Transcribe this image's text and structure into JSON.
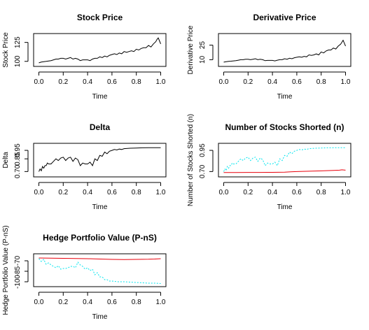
{
  "figure": {
    "background": "#ffffff"
  },
  "chart_data": [
    {
      "id": "stock",
      "type": "line",
      "title": "Stock Price",
      "xlabel": "Time",
      "ylabel": "Stock Price",
      "xlim": [
        0,
        1
      ],
      "ylim": [
        97,
        133
      ],
      "xticks": [
        0.0,
        0.2,
        0.4,
        0.6,
        0.8,
        1.0
      ],
      "xtick_labels": [
        "0.0",
        "0.2",
        "0.4",
        "0.6",
        "0.8",
        "1.0"
      ],
      "yticks": [
        100,
        125
      ],
      "ytick_labels": [
        "100",
        "125"
      ],
      "grid": false,
      "series": [
        {
          "color": "#000000",
          "dashed": false,
          "x": [
            0,
            0.02,
            0.04,
            0.06,
            0.08,
            0.1,
            0.12,
            0.14,
            0.16,
            0.18,
            0.2,
            0.22,
            0.24,
            0.26,
            0.28,
            0.3,
            0.32,
            0.34,
            0.36,
            0.38,
            0.4,
            0.42,
            0.44,
            0.46,
            0.48,
            0.5,
            0.52,
            0.54,
            0.56,
            0.58,
            0.6,
            0.62,
            0.64,
            0.66,
            0.68,
            0.7,
            0.72,
            0.74,
            0.76,
            0.78,
            0.8,
            0.82,
            0.84,
            0.86,
            0.88,
            0.9,
            0.92,
            0.94,
            0.96,
            0.97,
            0.98,
            0.99,
            1.0
          ],
          "y": [
            98,
            99,
            99.5,
            100,
            100.5,
            101,
            102,
            103,
            103,
            104,
            104,
            103,
            104,
            105,
            103,
            104,
            103,
            101,
            102,
            102,
            102,
            101,
            103,
            104,
            104,
            106,
            105,
            107,
            106,
            108,
            109,
            110,
            109,
            111,
            110,
            113,
            112,
            113,
            114,
            113,
            116,
            115,
            117,
            118,
            118,
            121,
            119,
            123,
            126,
            129,
            131,
            127,
            123
          ]
        }
      ]
    },
    {
      "id": "derivative",
      "type": "line",
      "title": "Derivative Price",
      "xlabel": "Time",
      "ylabel": "Derivative Price",
      "xlim": [
        0,
        1
      ],
      "ylim": [
        6,
        34
      ],
      "xticks": [
        0.0,
        0.2,
        0.4,
        0.6,
        0.8,
        1.0
      ],
      "xtick_labels": [
        "0.0",
        "0.2",
        "0.4",
        "0.6",
        "0.8",
        "1.0"
      ],
      "yticks": [
        10,
        25
      ],
      "ytick_labels": [
        "10",
        "25"
      ],
      "grid": false,
      "series": [
        {
          "color": "#000000",
          "dashed": false,
          "x": [
            0,
            0.02,
            0.04,
            0.06,
            0.08,
            0.1,
            0.12,
            0.14,
            0.16,
            0.18,
            0.2,
            0.22,
            0.24,
            0.26,
            0.28,
            0.3,
            0.32,
            0.34,
            0.36,
            0.38,
            0.4,
            0.42,
            0.44,
            0.46,
            0.48,
            0.5,
            0.52,
            0.54,
            0.56,
            0.58,
            0.6,
            0.62,
            0.64,
            0.66,
            0.68,
            0.7,
            0.72,
            0.74,
            0.76,
            0.78,
            0.8,
            0.82,
            0.84,
            0.86,
            0.88,
            0.9,
            0.92,
            0.94,
            0.96,
            0.97,
            0.98,
            0.99,
            1.0
          ],
          "y": [
            7.5,
            8,
            8.3,
            8.5,
            8.8,
            9,
            9.5,
            10,
            10,
            10.5,
            10.5,
            10,
            10.5,
            11,
            10,
            10.5,
            10,
            9,
            9.3,
            9.3,
            9.3,
            8.8,
            9.5,
            10,
            10,
            11,
            10.5,
            11.5,
            11,
            12,
            12.5,
            13,
            12.5,
            13.5,
            13,
            15,
            14.5,
            15,
            16,
            15,
            18,
            17,
            19,
            20,
            20,
            22,
            21,
            24,
            26,
            28,
            30,
            27,
            24
          ]
        }
      ]
    },
    {
      "id": "delta",
      "type": "line",
      "title": "Delta",
      "xlabel": "Time",
      "ylabel": "Delta",
      "xlim": [
        0,
        1
      ],
      "ylim": [
        0.67,
        1.0
      ],
      "xticks": [
        0.0,
        0.2,
        0.4,
        0.6,
        0.8,
        1.0
      ],
      "xtick_labels": [
        "0.0",
        "0.2",
        "0.4",
        "0.6",
        "0.8",
        "1.0"
      ],
      "yticks": [
        0.7,
        0.85,
        0.95
      ],
      "ytick_labels": [
        "0.70",
        "0.85",
        "0.95"
      ],
      "grid": false,
      "series": [
        {
          "color": "#000000",
          "dashed": false,
          "x": [
            0,
            0.01,
            0.02,
            0.03,
            0.04,
            0.05,
            0.06,
            0.07,
            0.08,
            0.1,
            0.12,
            0.14,
            0.16,
            0.18,
            0.2,
            0.22,
            0.24,
            0.26,
            0.28,
            0.3,
            0.32,
            0.34,
            0.36,
            0.38,
            0.4,
            0.42,
            0.44,
            0.46,
            0.48,
            0.5,
            0.52,
            0.54,
            0.56,
            0.58,
            0.6,
            0.62,
            0.64,
            0.66,
            0.68,
            0.7,
            0.72,
            0.75,
            0.8,
            0.85,
            0.9,
            0.95,
            1.0
          ],
          "y": [
            0.7,
            0.73,
            0.71,
            0.76,
            0.74,
            0.77,
            0.77,
            0.8,
            0.79,
            0.79,
            0.82,
            0.85,
            0.83,
            0.86,
            0.87,
            0.83,
            0.86,
            0.87,
            0.82,
            0.86,
            0.84,
            0.77,
            0.8,
            0.79,
            0.79,
            0.81,
            0.77,
            0.85,
            0.83,
            0.89,
            0.88,
            0.93,
            0.91,
            0.94,
            0.95,
            0.96,
            0.955,
            0.965,
            0.96,
            0.97,
            0.972,
            0.975,
            0.978,
            0.98,
            0.981,
            0.982,
            0.982
          ]
        }
      ]
    },
    {
      "id": "shorted",
      "type": "line",
      "title": "Number of Stocks Shorted (n)",
      "xlabel": "Time",
      "ylabel": "Number of Stocks Shorted (n)",
      "xlim": [
        0,
        1
      ],
      "ylim": [
        0.67,
        1.0
      ],
      "xticks": [
        0.0,
        0.2,
        0.4,
        0.6,
        0.8,
        1.0
      ],
      "xtick_labels": [
        "0.0",
        "0.2",
        "0.4",
        "0.6",
        "0.8",
        "1.0"
      ],
      "yticks": [
        0.7,
        0.95
      ],
      "ytick_labels": [
        "0.70",
        "0.95"
      ],
      "grid": false,
      "series": [
        {
          "color": "#00e5ee",
          "dashed": true,
          "x": [
            0,
            0.01,
            0.02,
            0.03,
            0.04,
            0.05,
            0.06,
            0.07,
            0.08,
            0.1,
            0.12,
            0.14,
            0.16,
            0.18,
            0.2,
            0.22,
            0.24,
            0.26,
            0.28,
            0.3,
            0.32,
            0.34,
            0.36,
            0.38,
            0.4,
            0.42,
            0.44,
            0.46,
            0.48,
            0.5,
            0.52,
            0.54,
            0.56,
            0.58,
            0.6,
            0.62,
            0.64,
            0.66,
            0.68,
            0.7,
            0.72,
            0.75,
            0.8,
            0.85,
            0.9,
            0.95,
            1.0
          ],
          "y": [
            0.7,
            0.73,
            0.71,
            0.76,
            0.74,
            0.77,
            0.77,
            0.8,
            0.79,
            0.79,
            0.82,
            0.85,
            0.83,
            0.86,
            0.87,
            0.83,
            0.86,
            0.87,
            0.82,
            0.86,
            0.84,
            0.77,
            0.8,
            0.79,
            0.79,
            0.81,
            0.77,
            0.85,
            0.83,
            0.89,
            0.88,
            0.93,
            0.91,
            0.94,
            0.95,
            0.96,
            0.955,
            0.965,
            0.96,
            0.97,
            0.972,
            0.975,
            0.978,
            0.98,
            0.981,
            0.982,
            0.982
          ]
        },
        {
          "color": "#e8000b",
          "dashed": false,
          "x": [
            0,
            0.1,
            0.2,
            0.3,
            0.4,
            0.5,
            0.55,
            0.6,
            0.7,
            0.8,
            0.9,
            0.95,
            0.97,
            1.0
          ],
          "y": [
            0.688,
            0.689,
            0.69,
            0.69,
            0.691,
            0.692,
            0.696,
            0.7,
            0.704,
            0.708,
            0.713,
            0.716,
            0.72,
            0.716
          ]
        }
      ]
    },
    {
      "id": "hedge",
      "type": "line",
      "title": "Hedge Portfolio Value (P-nS)",
      "xlabel": "Time",
      "ylabel": "Hedge Portfolio Value (P-nS)",
      "xlim": [
        0,
        1
      ],
      "ylim": [
        -103,
        -64
      ],
      "xticks": [
        0.0,
        0.2,
        0.4,
        0.6,
        0.8,
        1.0
      ],
      "xtick_labels": [
        "0.0",
        "0.2",
        "0.4",
        "0.6",
        "0.8",
        "1.0"
      ],
      "yticks": [
        -70,
        -85,
        -100
      ],
      "ytick_labels": [
        "-70",
        "-85",
        "-100"
      ],
      "grid": false,
      "series": [
        {
          "color": "#00e5ee",
          "dashed": true,
          "x": [
            0,
            0.02,
            0.04,
            0.06,
            0.08,
            0.1,
            0.12,
            0.14,
            0.16,
            0.18,
            0.2,
            0.22,
            0.24,
            0.26,
            0.28,
            0.3,
            0.32,
            0.34,
            0.36,
            0.38,
            0.4,
            0.42,
            0.44,
            0.46,
            0.48,
            0.5,
            0.52,
            0.54,
            0.56,
            0.58,
            0.6,
            0.65,
            0.7,
            0.75,
            0.8,
            0.85,
            0.9,
            0.95,
            1.0
          ],
          "y": [
            -67,
            -71,
            -68,
            -75,
            -73,
            -76,
            -78,
            -80,
            -77,
            -82,
            -81,
            -81,
            -80,
            -78,
            -78,
            -80,
            -72,
            -76,
            -78,
            -82,
            -80,
            -84,
            -82,
            -90,
            -87,
            -93,
            -93,
            -97,
            -97,
            -99,
            -99,
            -100,
            -100,
            -100.5,
            -101,
            -101.5,
            -102,
            -102,
            -102.5
          ]
        }
      ]
    },
    {
      "id": "hedge-red",
      "type": "line",
      "title": "",
      "xlabel": "",
      "ylabel": "",
      "xlim": [
        0,
        1
      ],
      "ylim": [
        -103,
        -64
      ],
      "xticks": [],
      "xtick_labels": [],
      "yticks": [],
      "ytick_labels": [],
      "grid": false,
      "overlay_of": "hedge",
      "series": [
        {
          "color": "#e8000b",
          "dashed": false,
          "x": [
            0,
            0.1,
            0.2,
            0.3,
            0.4,
            0.5,
            0.6,
            0.7,
            0.8,
            0.9,
            0.95,
            1.0
          ],
          "y": [
            -66,
            -66.2,
            -66.5,
            -66.8,
            -67,
            -67.5,
            -68,
            -68.3,
            -68,
            -67.8,
            -67.5,
            -67
          ]
        }
      ]
    }
  ]
}
